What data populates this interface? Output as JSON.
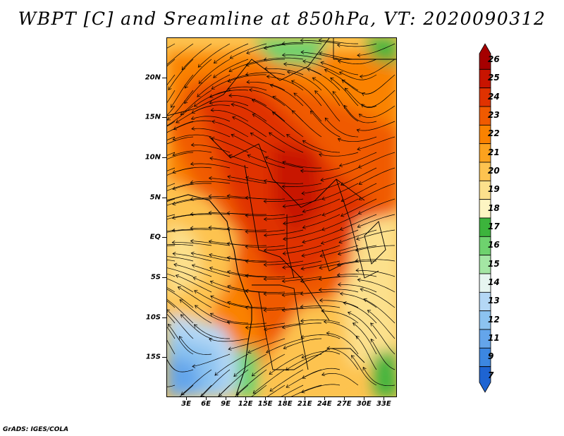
{
  "title": "WBPT [C] and Sreamline at 850hPa, VT: 2020090312",
  "credit": "GrADS: IGES/COLA",
  "map": {
    "variable": "WBPT",
    "units": "C",
    "level": "850hPa",
    "valid_time": "2020090312",
    "lon_range": [
      0,
      35
    ],
    "lat_range": [
      -20,
      25
    ],
    "lat_labels": [
      "20N",
      "15N",
      "10N",
      "5N",
      "EQ",
      "5S",
      "10S",
      "15S"
    ],
    "lat_values": [
      20,
      15,
      10,
      5,
      0,
      -5,
      -10,
      -15
    ],
    "lon_labels": [
      "3E",
      "6E",
      "9E",
      "12E",
      "15E",
      "18E",
      "21E",
      "24E",
      "27E",
      "30E",
      "33E"
    ],
    "lon_values": [
      3,
      6,
      9,
      12,
      15,
      18,
      21,
      24,
      27,
      30,
      33
    ]
  },
  "colorbar": {
    "labels": [
      "26",
      "25",
      "24",
      "23",
      "22",
      "21",
      "20",
      "19",
      "18",
      "17",
      "16",
      "15",
      "14",
      "13",
      "12",
      "11",
      "9",
      "7"
    ],
    "colors": [
      "#a50000",
      "#c81400",
      "#e03200",
      "#f05a00",
      "#fa8200",
      "#fca21e",
      "#fdc350",
      "#fce08c",
      "#fdf5c3",
      "#3cb43c",
      "#6ed26e",
      "#a4e6a4",
      "#e6f5f0",
      "#b4d7f5",
      "#8cc3f0",
      "#64a5eb",
      "#3c87e1",
      "#1e64d2"
    ]
  },
  "colors": {
    "background": "#ffffff",
    "text": "#000000"
  }
}
